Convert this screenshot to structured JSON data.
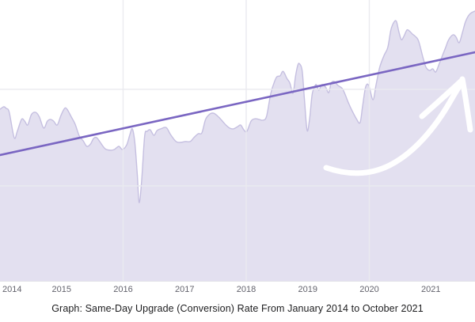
{
  "caption": "Graph: Same-Day Upgrade (Conversion) Rate From January 2014 to October 2021",
  "colors": {
    "background": "#ffffff",
    "area_fill_rgba": "rgba(105,92,177,0.19)",
    "area_edge": "#c5bfe0",
    "trend_line": "#7a66c2",
    "grid_line": "#eaeaef",
    "axis_line": "#e2e2e8",
    "tick_text": "#63636d",
    "caption_text": "#1d1d1f",
    "annotation_arrow": "#ffffff"
  },
  "chart_data": {
    "type": "area",
    "title": "Graph: Same-Day Upgrade (Conversion) Rate From January 2014 to October 2021",
    "xlabel": "",
    "ylabel": "",
    "x_range_years": [
      2014.0,
      2021.75
    ],
    "value_range": [
      0,
      100
    ],
    "grid": "on",
    "legend": "none",
    "x_ticks": [
      "2014",
      "2015",
      "2016",
      "2017",
      "2018",
      "2019",
      "2020",
      "2021"
    ],
    "x_tick_years": [
      2014,
      2015,
      2016,
      2017,
      2018,
      2019,
      2020,
      2021
    ],
    "vertical_gridline_years": [
      2016,
      2018,
      2020
    ],
    "horizontal_gridline_values": [
      68.2,
      33.8
    ],
    "trend_line": {
      "x1": 2014.0,
      "v1": 44.8,
      "x2": 2021.72,
      "v2": 81.4
    },
    "annotation": {
      "name": "hand-drawn-growth-arrow",
      "color": "#ffffff",
      "meaning": "upward acceleration toward 2021"
    },
    "series": [
      {
        "x": 2014.0,
        "v": 61.1
      },
      {
        "x": 2014.06,
        "v": 62.0
      },
      {
        "x": 2014.1,
        "v": 61.4
      },
      {
        "x": 2014.15,
        "v": 60.0
      },
      {
        "x": 2014.23,
        "v": 51.0
      },
      {
        "x": 2014.28,
        "v": 53.2
      },
      {
        "x": 2014.35,
        "v": 57.5
      },
      {
        "x": 2014.4,
        "v": 56.9
      },
      {
        "x": 2014.45,
        "v": 55.5
      },
      {
        "x": 2014.51,
        "v": 59.2
      },
      {
        "x": 2014.58,
        "v": 60.0
      },
      {
        "x": 2014.64,
        "v": 58.3
      },
      {
        "x": 2014.71,
        "v": 54.4
      },
      {
        "x": 2014.77,
        "v": 56.9
      },
      {
        "x": 2014.82,
        "v": 57.5
      },
      {
        "x": 2014.87,
        "v": 56.9
      },
      {
        "x": 2014.93,
        "v": 55.5
      },
      {
        "x": 2014.99,
        "v": 58.9
      },
      {
        "x": 2015.05,
        "v": 61.4
      },
      {
        "x": 2015.09,
        "v": 61.1
      },
      {
        "x": 2015.16,
        "v": 58.3
      },
      {
        "x": 2015.22,
        "v": 55.8
      },
      {
        "x": 2015.29,
        "v": 51.5
      },
      {
        "x": 2015.35,
        "v": 49.9
      },
      {
        "x": 2015.41,
        "v": 47.9
      },
      {
        "x": 2015.47,
        "v": 48.7
      },
      {
        "x": 2015.52,
        "v": 50.7
      },
      {
        "x": 2015.57,
        "v": 51.0
      },
      {
        "x": 2015.63,
        "v": 49.3
      },
      {
        "x": 2015.71,
        "v": 47.0
      },
      {
        "x": 2015.8,
        "v": 46.5
      },
      {
        "x": 2015.86,
        "v": 46.8
      },
      {
        "x": 2015.93,
        "v": 47.9
      },
      {
        "x": 2015.99,
        "v": 46.8
      },
      {
        "x": 2016.06,
        "v": 48.5
      },
      {
        "x": 2016.11,
        "v": 52.1
      },
      {
        "x": 2016.15,
        "v": 54.1
      },
      {
        "x": 2016.19,
        "v": 49.3
      },
      {
        "x": 2016.23,
        "v": 38.0
      },
      {
        "x": 2016.26,
        "v": 27.9
      },
      {
        "x": 2016.3,
        "v": 35.2
      },
      {
        "x": 2016.35,
        "v": 51.5
      },
      {
        "x": 2016.39,
        "v": 53.2
      },
      {
        "x": 2016.44,
        "v": 53.8
      },
      {
        "x": 2016.5,
        "v": 51.8
      },
      {
        "x": 2016.55,
        "v": 53.5
      },
      {
        "x": 2016.61,
        "v": 54.1
      },
      {
        "x": 2016.7,
        "v": 54.6
      },
      {
        "x": 2016.77,
        "v": 52.1
      },
      {
        "x": 2016.86,
        "v": 49.6
      },
      {
        "x": 2016.93,
        "v": 49.3
      },
      {
        "x": 2017.01,
        "v": 49.6
      },
      {
        "x": 2017.09,
        "v": 49.6
      },
      {
        "x": 2017.15,
        "v": 51.0
      },
      {
        "x": 2017.22,
        "v": 52.4
      },
      {
        "x": 2017.28,
        "v": 52.7
      },
      {
        "x": 2017.34,
        "v": 57.5
      },
      {
        "x": 2017.41,
        "v": 59.4
      },
      {
        "x": 2017.47,
        "v": 59.7
      },
      {
        "x": 2017.54,
        "v": 58.6
      },
      {
        "x": 2017.6,
        "v": 57.2
      },
      {
        "x": 2017.67,
        "v": 55.5
      },
      {
        "x": 2017.73,
        "v": 54.4
      },
      {
        "x": 2017.79,
        "v": 54.1
      },
      {
        "x": 2017.86,
        "v": 54.9
      },
      {
        "x": 2017.91,
        "v": 55.5
      },
      {
        "x": 2017.96,
        "v": 53.8
      },
      {
        "x": 2018.01,
        "v": 53.2
      },
      {
        "x": 2018.08,
        "v": 56.9
      },
      {
        "x": 2018.14,
        "v": 57.7
      },
      {
        "x": 2018.21,
        "v": 57.5
      },
      {
        "x": 2018.27,
        "v": 57.2
      },
      {
        "x": 2018.33,
        "v": 58.6
      },
      {
        "x": 2018.4,
        "v": 66.8
      },
      {
        "x": 2018.46,
        "v": 71.0
      },
      {
        "x": 2018.5,
        "v": 72.7
      },
      {
        "x": 2018.55,
        "v": 73.0
      },
      {
        "x": 2018.6,
        "v": 74.6
      },
      {
        "x": 2018.66,
        "v": 72.1
      },
      {
        "x": 2018.71,
        "v": 70.4
      },
      {
        "x": 2018.76,
        "v": 66.8
      },
      {
        "x": 2018.8,
        "v": 72.7
      },
      {
        "x": 2018.84,
        "v": 76.9
      },
      {
        "x": 2018.87,
        "v": 77.2
      },
      {
        "x": 2018.91,
        "v": 74.6
      },
      {
        "x": 2018.95,
        "v": 63.4
      },
      {
        "x": 2018.99,
        "v": 53.5
      },
      {
        "x": 2019.03,
        "v": 57.7
      },
      {
        "x": 2019.07,
        "v": 66.2
      },
      {
        "x": 2019.11,
        "v": 69.0
      },
      {
        "x": 2019.14,
        "v": 69.9
      },
      {
        "x": 2019.18,
        "v": 67.9
      },
      {
        "x": 2019.23,
        "v": 69.9
      },
      {
        "x": 2019.29,
        "v": 69.0
      },
      {
        "x": 2019.34,
        "v": 67.0
      },
      {
        "x": 2019.38,
        "v": 70.4
      },
      {
        "x": 2019.43,
        "v": 71.0
      },
      {
        "x": 2019.49,
        "v": 69.6
      },
      {
        "x": 2019.56,
        "v": 68.5
      },
      {
        "x": 2019.61,
        "v": 66.2
      },
      {
        "x": 2019.66,
        "v": 63.4
      },
      {
        "x": 2019.72,
        "v": 60.6
      },
      {
        "x": 2019.79,
        "v": 57.7
      },
      {
        "x": 2019.85,
        "v": 56.3
      },
      {
        "x": 2019.89,
        "v": 62.0
      },
      {
        "x": 2019.94,
        "v": 69.0
      },
      {
        "x": 2019.99,
        "v": 69.6
      },
      {
        "x": 2020.06,
        "v": 64.5
      },
      {
        "x": 2020.11,
        "v": 69.9
      },
      {
        "x": 2020.17,
        "v": 76.1
      },
      {
        "x": 2020.24,
        "v": 80.3
      },
      {
        "x": 2020.3,
        "v": 83.1
      },
      {
        "x": 2020.35,
        "v": 89.3
      },
      {
        "x": 2020.4,
        "v": 92.1
      },
      {
        "x": 2020.44,
        "v": 92.4
      },
      {
        "x": 2020.48,
        "v": 88.7
      },
      {
        "x": 2020.52,
        "v": 85.9
      },
      {
        "x": 2020.56,
        "v": 87.0
      },
      {
        "x": 2020.61,
        "v": 89.3
      },
      {
        "x": 2020.65,
        "v": 89.0
      },
      {
        "x": 2020.7,
        "v": 87.9
      },
      {
        "x": 2020.75,
        "v": 87.0
      },
      {
        "x": 2020.8,
        "v": 85.4
      },
      {
        "x": 2020.87,
        "v": 79.7
      },
      {
        "x": 2020.92,
        "v": 76.1
      },
      {
        "x": 2020.98,
        "v": 74.9
      },
      {
        "x": 2021.03,
        "v": 75.5
      },
      {
        "x": 2021.08,
        "v": 74.4
      },
      {
        "x": 2021.14,
        "v": 77.5
      },
      {
        "x": 2021.19,
        "v": 80.3
      },
      {
        "x": 2021.24,
        "v": 83.1
      },
      {
        "x": 2021.29,
        "v": 85.9
      },
      {
        "x": 2021.36,
        "v": 87.6
      },
      {
        "x": 2021.41,
        "v": 86.8
      },
      {
        "x": 2021.46,
        "v": 84.8
      },
      {
        "x": 2021.51,
        "v": 88.2
      },
      {
        "x": 2021.56,
        "v": 92.1
      },
      {
        "x": 2021.61,
        "v": 94.4
      },
      {
        "x": 2021.66,
        "v": 95.5
      },
      {
        "x": 2021.72,
        "v": 96.1
      }
    ]
  }
}
